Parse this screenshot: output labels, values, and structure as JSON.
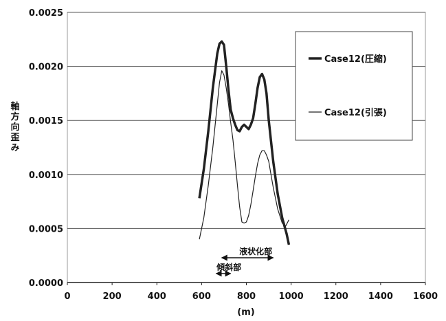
{
  "chart_data": {
    "type": "line",
    "title": "",
    "xlabel": "(m)",
    "ylabel": "軸方向歪み",
    "xlim": [
      0,
      1600
    ],
    "ylim": [
      0,
      0.0025
    ],
    "x_ticks": [
      "0",
      "200",
      "400",
      "600",
      "800",
      "1000",
      "1200",
      "1400",
      "1600"
    ],
    "y_ticks": [
      "0.0000",
      "0.0005",
      "0.0010",
      "0.0015",
      "0.0020",
      "0.0025"
    ],
    "grid": "horizontal",
    "legend_position": "top-right",
    "series": [
      {
        "name": "Case12(圧縮)",
        "color": "#222222",
        "style": "thick",
        "x": [
          590,
          610,
          630,
          650,
          670,
          680,
          690,
          700,
          710,
          720,
          730,
          740,
          750,
          760,
          770,
          780,
          790,
          800,
          810,
          820,
          830,
          840,
          850,
          860,
          870,
          880,
          890,
          900,
          920,
          940,
          960,
          980,
          990
        ],
        "y": [
          0.00078,
          0.00105,
          0.0014,
          0.0018,
          0.00212,
          0.00221,
          0.00223,
          0.0022,
          0.002,
          0.00178,
          0.0016,
          0.00152,
          0.00146,
          0.00141,
          0.0014,
          0.00144,
          0.00146,
          0.00144,
          0.00142,
          0.00146,
          0.00152,
          0.00165,
          0.0018,
          0.0019,
          0.00193,
          0.00188,
          0.00175,
          0.0015,
          0.00112,
          0.00082,
          0.0006,
          0.00045,
          0.00035
        ]
      },
      {
        "name": "Case12(引張)",
        "color": "#222222",
        "style": "thin",
        "x": [
          590,
          610,
          630,
          650,
          670,
          680,
          690,
          700,
          710,
          720,
          730,
          740,
          750,
          760,
          770,
          780,
          790,
          800,
          810,
          820,
          830,
          840,
          850,
          860,
          870,
          880,
          890,
          900,
          910,
          920,
          940,
          960,
          975,
          990
        ],
        "y": [
          0.0004,
          0.0006,
          0.0009,
          0.00125,
          0.00165,
          0.00185,
          0.00196,
          0.00192,
          0.0018,
          0.00165,
          0.00148,
          0.00132,
          0.00112,
          0.0009,
          0.0007,
          0.00056,
          0.00055,
          0.00056,
          0.00062,
          0.00072,
          0.00085,
          0.00098,
          0.0011,
          0.00118,
          0.00122,
          0.00122,
          0.00118,
          0.00112,
          0.001,
          0.00088,
          0.00068,
          0.00055,
          0.00052,
          0.00058
        ]
      }
    ],
    "annotations": [
      {
        "text": "液状化部",
        "x_start": 690,
        "x_end": 920
      },
      {
        "text": "傾斜部",
        "x_start": 665,
        "x_end": 730
      }
    ]
  }
}
